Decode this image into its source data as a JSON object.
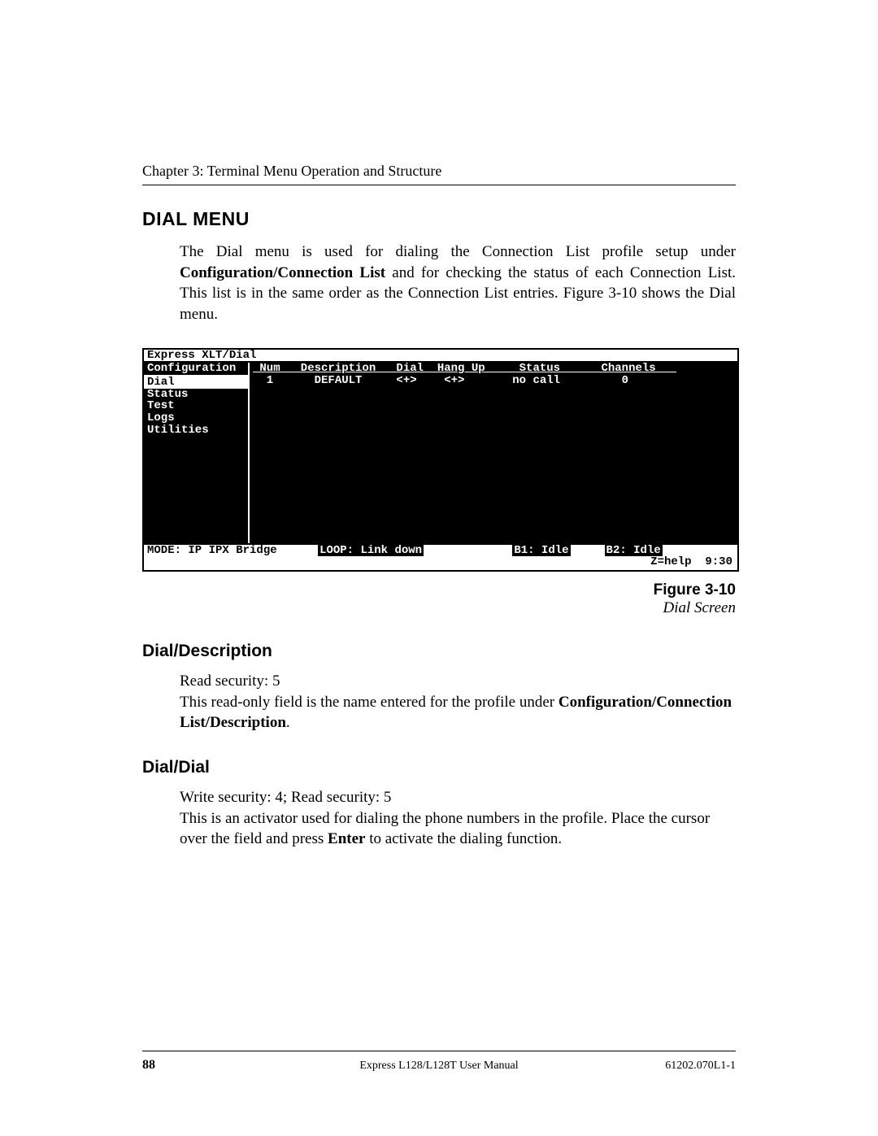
{
  "chapter": "Chapter 3: Terminal Menu Operation and Structure",
  "dial_menu": {
    "title": "DIAL MENU",
    "para_pre": "The Dial menu is used for dialing the Connection List profile setup under ",
    "bold1": "Configuration/Connection List",
    "para_post": " and for checking the status of each Connection List.   This list is in the same order as the Connection List entries.  Figure 3-10 shows the Dial menu."
  },
  "terminal": {
    "title": "Express XLT/Dial",
    "sidebar": [
      "Configuration",
      "Dial",
      "Status",
      "Test",
      "Logs",
      "Utilities"
    ],
    "selected_index": 1,
    "headers": " Num   Description   Dial  Hang Up     Status      Channels   ",
    "row": "  1      DEFAULT     <+>    <+>       no call         0",
    "status": {
      "mode": "MODE: IP IPX Bridge",
      "loop": "LOOP: Link down",
      "b1": "B1: Idle",
      "b2": "B2: Idle"
    },
    "footer": "Z=help  9:30"
  },
  "figure": {
    "num": "Figure 3-10",
    "title": "Dial Screen"
  },
  "dial_description": {
    "title": "Dial/Description",
    "line1": "Read security: 5",
    "line2_pre": "This read-only field is the name entered for the profile under ",
    "bold": "Configuration/Connection List/Description",
    "line2_post": "."
  },
  "dial_dial": {
    "title": "Dial/Dial",
    "line1": "Write security: 4; Read security: 5",
    "line2_pre": "This is an activator used for dialing the phone numbers in the profile.  Place the cursor over the field and press ",
    "bold": "Enter",
    "line2_post": " to activate the dialing function."
  },
  "footer": {
    "page": "88",
    "center": "Express L128/L128T User Manual",
    "right": "61202.070L1-1"
  }
}
